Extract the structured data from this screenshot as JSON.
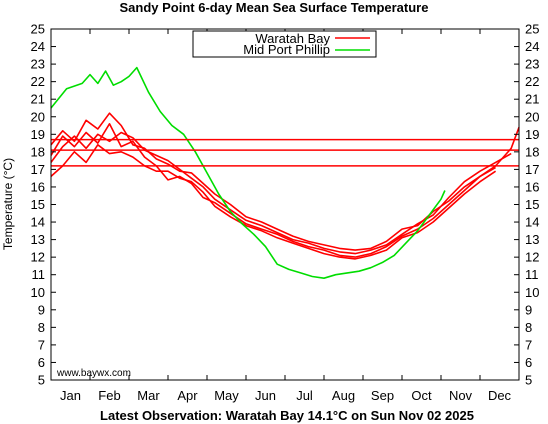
{
  "chart_data": {
    "type": "line",
    "title": "Sandy Point 6-day Mean Sea Surface Temperature",
    "ylabel": "Temperature (°C)",
    "xlabel": "",
    "ylim": [
      5,
      25
    ],
    "yticks": [
      5,
      6,
      7,
      8,
      9,
      10,
      11,
      12,
      13,
      14,
      15,
      16,
      17,
      18,
      19,
      20,
      21,
      22,
      23,
      24,
      25
    ],
    "xlim": [
      0,
      12
    ],
    "categories": [
      "Jan",
      "Feb",
      "Mar",
      "Apr",
      "May",
      "Jun",
      "Jul",
      "Aug",
      "Sep",
      "Oct",
      "Nov",
      "Dec"
    ],
    "grid": false,
    "legend_position": "top-center",
    "hlines": [
      {
        "y": 18.7,
        "color": "#ff0000"
      },
      {
        "y": 18.1,
        "color": "#ff0000"
      },
      {
        "y": 17.2,
        "color": "#ff0000"
      }
    ],
    "series": [
      {
        "name": "Waratah Bay",
        "color": "#ff0000",
        "traces": [
          {
            "x": [
              0,
              0.3,
              0.6,
              0.9,
              1.2,
              1.5,
              1.8,
              2.1,
              2.4,
              2.7,
              3.0,
              3.3,
              3.6,
              3.9,
              4.2,
              4.6,
              5.0,
              5.4,
              5.8,
              6.2,
              6.6,
              7.0,
              7.4,
              7.8,
              8.2,
              8.6,
              9.0,
              9.4,
              9.8,
              10.2,
              10.6,
              11.0,
              11.4
            ],
            "y": [
              18.4,
              19.2,
              18.6,
              19.8,
              19.3,
              20.2,
              19.5,
              18.4,
              18.2,
              17.6,
              17.3,
              16.9,
              16.8,
              16.2,
              15.6,
              15.0,
              14.3,
              14.0,
              13.6,
              13.2,
              12.9,
              12.7,
              12.5,
              12.4,
              12.5,
              12.9,
              13.6,
              13.8,
              14.6,
              15.2,
              16.0,
              16.6,
              17.1
            ]
          },
          {
            "x": [
              0,
              0.3,
              0.6,
              0.9,
              1.2,
              1.5,
              1.8,
              2.1,
              2.4,
              2.7,
              3.0,
              3.3,
              3.6,
              3.9,
              4.2,
              4.6,
              5.0,
              5.4,
              5.8,
              6.2,
              6.6,
              7.0,
              7.4,
              7.8,
              8.2,
              8.6,
              9.0,
              9.4,
              9.8,
              10.2,
              10.6,
              11.0,
              11.4,
              11.8
            ],
            "y": [
              17.4,
              18.3,
              18.9,
              18.2,
              19.0,
              18.6,
              19.1,
              18.8,
              18.1,
              17.8,
              17.5,
              17.0,
              16.5,
              16.0,
              15.3,
              14.7,
              14.1,
              13.8,
              13.4,
              13.0,
              12.8,
              12.5,
              12.3,
              12.2,
              12.4,
              12.7,
              13.3,
              13.9,
              14.4,
              15.4,
              16.3,
              16.9,
              17.4,
              17.9
            ]
          },
          {
            "x": [
              0,
              0.3,
              0.6,
              0.9,
              1.2,
              1.5,
              1.8,
              2.1,
              2.4,
              2.7,
              3.0,
              3.3,
              3.6,
              3.9,
              4.2,
              4.6,
              5.0,
              5.4,
              5.8,
              6.2,
              6.6,
              7.0,
              7.4,
              7.8,
              8.2,
              8.6,
              9.0,
              9.4,
              9.8,
              10.2,
              10.6,
              11.0,
              11.4
            ],
            "y": [
              16.6,
              17.2,
              18.0,
              17.4,
              18.4,
              17.9,
              18.0,
              17.7,
              17.2,
              16.9,
              16.9,
              16.5,
              16.3,
              15.7,
              14.9,
              14.3,
              13.8,
              13.5,
              13.1,
              12.8,
              12.5,
              12.2,
              12.0,
              11.9,
              12.1,
              12.4,
              13.1,
              13.4,
              14.0,
              14.8,
              15.6,
              16.3,
              16.9
            ]
          },
          {
            "x": [
              0,
              0.3,
              0.6,
              0.9,
              1.2,
              1.5,
              1.8,
              2.1,
              2.4,
              2.7,
              3.0,
              3.3,
              3.6,
              3.9,
              4.2,
              4.6,
              5.0,
              5.4,
              5.8,
              6.2,
              6.6,
              7.0,
              7.4,
              7.8,
              8.2,
              8.6,
              9.0,
              9.4,
              9.8,
              10.2,
              10.6,
              11.0,
              11.4,
              11.8,
              12.0
            ],
            "y": [
              17.8,
              18.9,
              18.3,
              19.1,
              18.5,
              19.6,
              18.3,
              18.6,
              17.7,
              17.2,
              16.4,
              16.6,
              16.2,
              15.4,
              15.1,
              14.5,
              13.9,
              13.6,
              13.3,
              12.9,
              12.6,
              12.4,
              12.1,
              12.0,
              12.2,
              12.6,
              13.2,
              13.6,
              14.2,
              15.0,
              15.8,
              16.6,
              17.2,
              18.2,
              19.4
            ]
          }
        ]
      },
      {
        "name": "Mid Port Phillip",
        "color": "#00dd00",
        "traces": [
          {
            "x": [
              0,
              0.4,
              0.8,
              1.0,
              1.2,
              1.4,
              1.6,
              1.8,
              2.0,
              2.2,
              2.5,
              2.8,
              3.1,
              3.4,
              3.7,
              4.0,
              4.3,
              4.6,
              4.9,
              5.2,
              5.5,
              5.8,
              6.1,
              6.4,
              6.7,
              7.0,
              7.3,
              7.6,
              7.9,
              8.2,
              8.5,
              8.8,
              9.1,
              9.4,
              9.7,
              10.0,
              10.1
            ],
            "y": [
              20.5,
              21.6,
              21.9,
              22.4,
              21.9,
              22.6,
              21.8,
              22.0,
              22.3,
              22.8,
              21.4,
              20.3,
              19.5,
              19.0,
              18.0,
              16.8,
              15.6,
              14.6,
              13.9,
              13.3,
              12.6,
              11.6,
              11.3,
              11.1,
              10.9,
              10.8,
              11.0,
              11.1,
              11.2,
              11.4,
              11.7,
              12.1,
              12.8,
              13.5,
              14.4,
              15.3,
              15.8
            ]
          }
        ]
      }
    ]
  },
  "watermark": "www.baywx.com",
  "footer": "Latest Observation: Waratah Bay 14.1°C on Sun Nov 02 2025"
}
